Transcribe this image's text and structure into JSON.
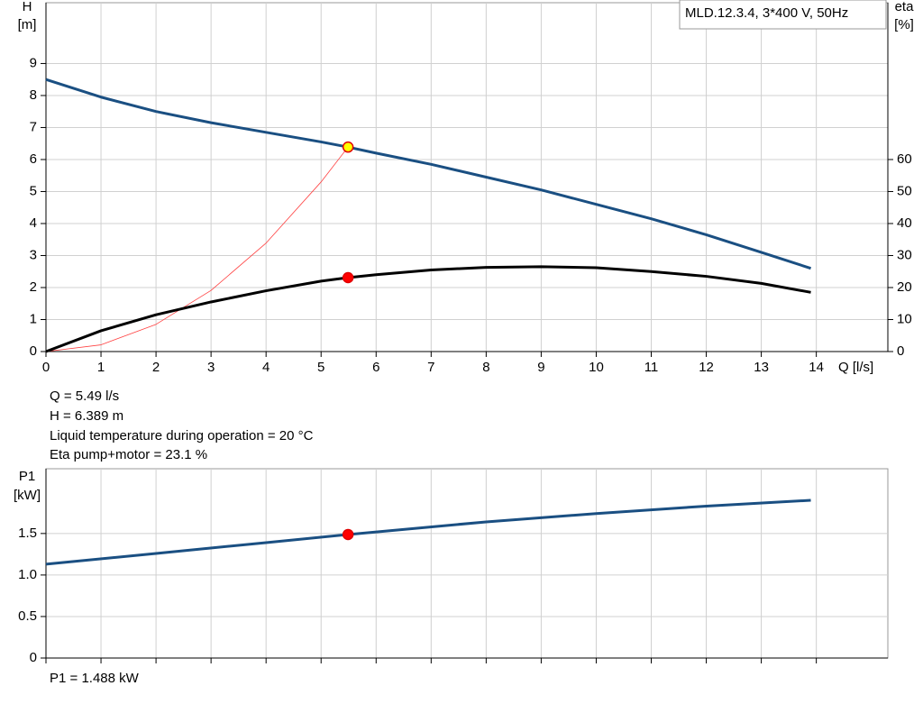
{
  "chart_data": [
    {
      "type": "line",
      "legend_text": "MLD.12.3.4, 3*400 V, 50Hz",
      "x_label": "Q [l/s]",
      "y_label": [
        "H",
        "[m]"
      ],
      "y2_label": [
        "eta",
        "[%]"
      ],
      "xlim": [
        0,
        15.3
      ],
      "xticks": [
        0,
        1,
        2,
        3,
        4,
        5,
        6,
        7,
        8,
        9,
        10,
        11,
        12,
        13,
        14
      ],
      "ylim": [
        0,
        10.9
      ],
      "yticks": [
        0,
        1,
        2,
        3,
        4,
        5,
        6,
        7,
        8,
        9
      ],
      "y2lim": [
        0,
        109
      ],
      "y2ticks": [
        0,
        10,
        20,
        30,
        40,
        50,
        60
      ],
      "grid": true,
      "series": [
        {
          "color": "#ff4040",
          "width": 0.8,
          "x": [
            0,
            1,
            2,
            3,
            4,
            5,
            5.49
          ],
          "values": [
            0,
            0.21,
            0.85,
            1.91,
            3.39,
            5.3,
            6.389
          ]
        },
        {
          "color": "#1a4f82",
          "width": 3,
          "x": [
            0,
            1,
            2,
            3,
            4,
            5,
            5.49,
            6,
            7,
            8,
            9,
            10,
            11,
            12,
            13,
            13.9
          ],
          "values": [
            8.5,
            7.95,
            7.5,
            7.15,
            6.85,
            6.55,
            6.389,
            6.2,
            5.85,
            5.45,
            5.05,
            4.6,
            4.15,
            3.65,
            3.1,
            2.6
          ]
        },
        {
          "color": "#000000",
          "width": 3,
          "axis": "y2",
          "x": [
            0,
            1,
            2,
            3,
            4,
            5,
            5.49,
            6,
            7,
            8,
            9,
            10,
            11,
            12,
            13,
            13.9
          ],
          "values": [
            0,
            6.5,
            11.5,
            15.5,
            19,
            22,
            23.1,
            24,
            25.5,
            26.3,
            26.5,
            26.2,
            25,
            23.5,
            21.3,
            18.5
          ]
        }
      ],
      "points": [
        {
          "x": 5.49,
          "y": 6.389,
          "color": "#ffff00"
        },
        {
          "x": 5.49,
          "y": 23.1,
          "color": "#ff0000",
          "axis": "y2"
        }
      ],
      "annotations": [
        "Q = 5.49 l/s",
        "H = 6.389 m",
        "Liquid temperature during operation = 20 °C",
        "Eta pump+motor = 23.1 %"
      ]
    },
    {
      "type": "line",
      "y_label": [
        "P1",
        "[kW]"
      ],
      "xlim": [
        0,
        15.3
      ],
      "xgrid": [
        0,
        1,
        2,
        3,
        4,
        5,
        6,
        7,
        8,
        9,
        10,
        11,
        12,
        13,
        14
      ],
      "ylim": [
        0,
        2.28
      ],
      "yticks": [
        0,
        0.5,
        {
          "value": 1,
          "label": "1.0"
        },
        1.5
      ],
      "grid": true,
      "series": [
        {
          "color": "#1a4f82",
          "width": 3,
          "x": [
            0,
            2,
            4,
            5.49,
            8,
            10,
            12,
            13.9
          ],
          "values": [
            1.13,
            1.26,
            1.39,
            1.488,
            1.64,
            1.74,
            1.83,
            1.9
          ]
        }
      ],
      "points": [
        {
          "x": 5.49,
          "y": 1.488,
          "color": "#ff0000"
        }
      ],
      "annotations": [
        "P1 = 1.488 kW"
      ]
    }
  ]
}
